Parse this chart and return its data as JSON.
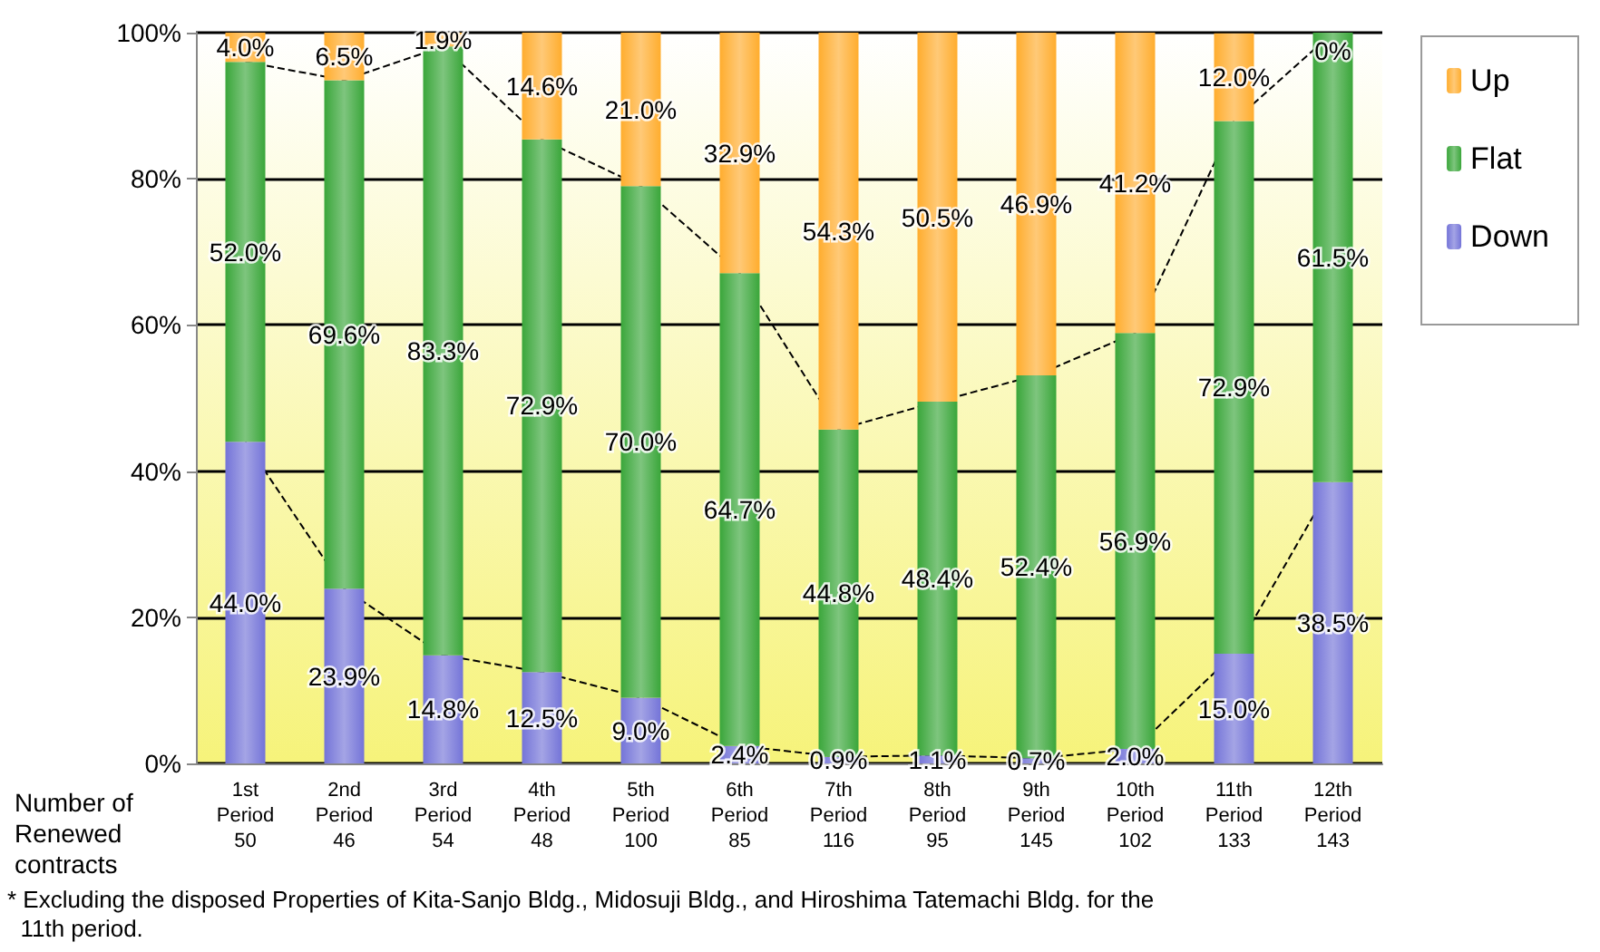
{
  "chart_data": {
    "type": "bar",
    "stacked": true,
    "xlabel": "Number of\nRenewed\ncontracts",
    "categories": [
      "1st\nPeriod\n50",
      "2nd\nPeriod\n46",
      "3rd\nPeriod\n54",
      "4th\nPeriod\n48",
      "5th\nPeriod\n100",
      "6th\nPeriod\n85",
      "7th\nPeriod\n116",
      "8th\nPeriod\n95",
      "9th\nPeriod\n145",
      "10th\nPeriod\n102",
      "11th\nPeriod\n133",
      "12th\nPeriod\n143"
    ],
    "series": [
      {
        "name": "Down",
        "color": "#7474d8",
        "values": [
          44.0,
          23.9,
          14.8,
          12.5,
          9.0,
          2.4,
          0.9,
          1.1,
          0.7,
          2.0,
          15.0,
          38.5
        ],
        "value_labels": [
          "44.0%",
          "23.9%",
          "14.8%",
          "12.5%",
          "9.0%",
          "2.4%",
          "0.9%",
          "1.1%",
          "0.7%",
          "2.0%",
          "15.0%",
          "38.5%"
        ]
      },
      {
        "name": "Flat",
        "color": "#3aa63a",
        "values": [
          52.0,
          69.6,
          83.3,
          72.9,
          70.0,
          64.7,
          44.8,
          48.4,
          52.4,
          56.9,
          72.9,
          61.5
        ],
        "value_labels": [
          "52.0%",
          "69.6%",
          "83.3%",
          "72.9%",
          "70.0%",
          "64.7%",
          "44.8%",
          "48.4%",
          "52.4%",
          "56.9%",
          "72.9%",
          "61.5%"
        ]
      },
      {
        "name": "Up",
        "color": "#ffad2e",
        "values": [
          4.0,
          6.5,
          1.9,
          14.6,
          21.0,
          32.9,
          54.3,
          50.5,
          46.9,
          41.2,
          12.0,
          0
        ],
        "value_labels": [
          "4.0%",
          "6.5%",
          "1.9%",
          "14.6%",
          "21.0%",
          "32.9%",
          "54.3%",
          "50.5%",
          "46.9%",
          "41.2%",
          "12.0%",
          "0%"
        ]
      }
    ],
    "ylim": [
      0,
      100
    ],
    "yticks": [
      {
        "value": 0,
        "label": "0%"
      },
      {
        "value": 20,
        "label": "20%"
      },
      {
        "value": 40,
        "label": "40%"
      },
      {
        "value": 60,
        "label": "60%"
      },
      {
        "value": 80,
        "label": "80%"
      },
      {
        "value": 100,
        "label": "100%"
      }
    ],
    "grid": "y",
    "legend": "top right",
    "annotations": [
      "* Excluding the disposed Properties of Kita-Sanjo Bldg., Midosuji Bldg., and Hiroshima Tatemachi Bldg. for the\n  11th period."
    ]
  }
}
